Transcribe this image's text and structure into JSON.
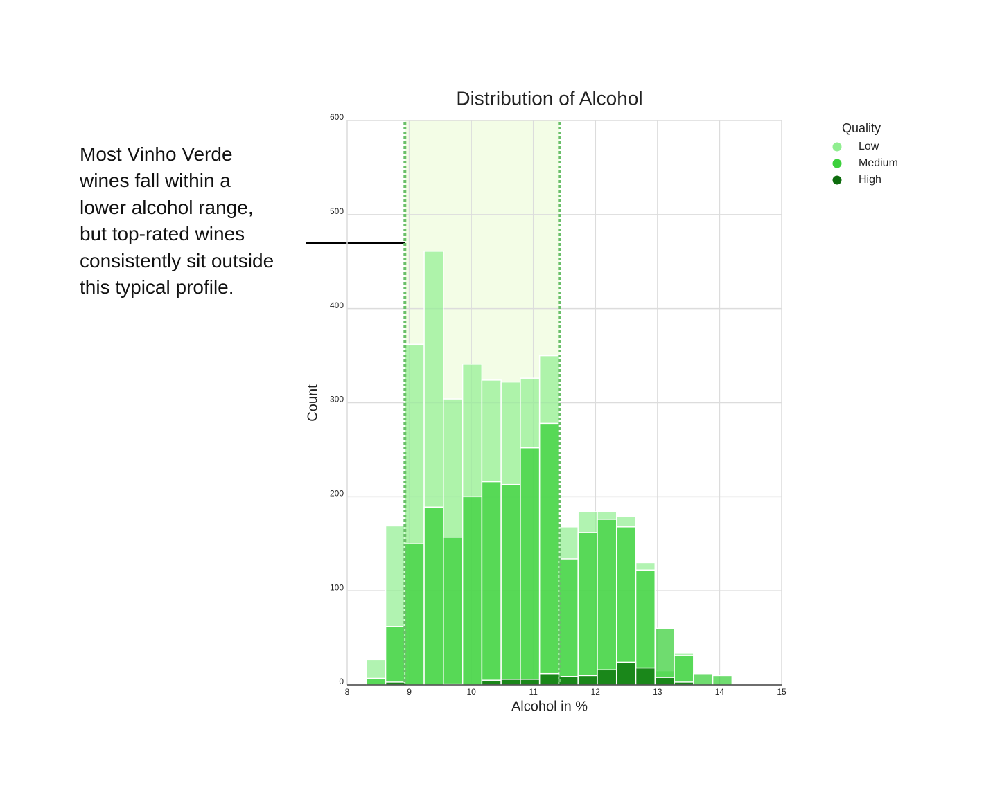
{
  "annotation": "Most Vinho Verde wines fall within a lower alcohol range, but top-rated wines consistently sit outside this typical profile.",
  "chart_data": {
    "type": "histogram",
    "title": "Distribution of Alcohol",
    "x_label": "Alcohol in %",
    "y_label": "Count",
    "bins": [
      8.0,
      8.31,
      8.62,
      8.93,
      9.24,
      9.55,
      9.86,
      10.17,
      10.48,
      10.79,
      11.1,
      11.41,
      11.72,
      12.03,
      12.34,
      12.65,
      12.96,
      13.27,
      13.58,
      13.89,
      14.2
    ],
    "legend_title": "Quality",
    "legend": "outside right",
    "series": [
      {
        "name": "Low",
        "color": "#90ee90",
        "values": [
          0,
          27,
          169,
          362,
          461,
          304,
          341,
          324,
          322,
          326,
          350,
          168,
          184,
          184,
          179,
          130,
          15,
          34,
          1,
          0
        ]
      },
      {
        "name": "Medium",
        "color": "#32cd32",
        "values": [
          0,
          7,
          62,
          150,
          189,
          157,
          200,
          216,
          213,
          252,
          278,
          134,
          162,
          176,
          168,
          122,
          60,
          31,
          12,
          10
        ]
      },
      {
        "name": "High",
        "color": "#006400",
        "values": [
          0,
          0,
          3,
          0,
          0,
          1,
          0,
          5,
          6,
          6,
          12,
          9,
          10,
          16,
          24,
          18,
          8,
          3,
          0,
          0
        ]
      }
    ],
    "highlight_range": [
      8.93,
      11.42
    ],
    "highlight_color": "#6abf69",
    "xlim": [
      8,
      15
    ],
    "xticks": [
      8,
      9,
      10,
      11,
      12,
      13,
      14,
      15
    ],
    "ylim": [
      0,
      600
    ],
    "yticks": [
      0,
      100,
      200,
      300,
      400,
      500,
      600
    ],
    "grid": true
  }
}
